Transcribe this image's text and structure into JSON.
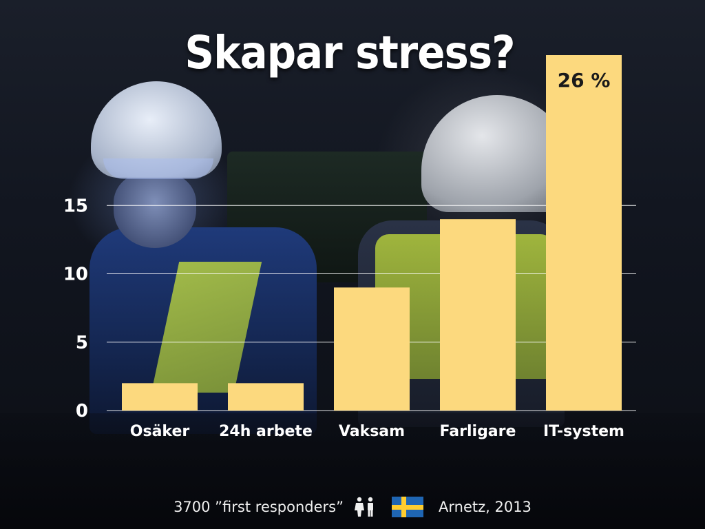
{
  "title": "Skapar stress?",
  "chart_data": {
    "type": "bar",
    "categories": [
      "Osäker",
      "24h arbete",
      "Vaksam",
      "Farligare",
      "IT-system"
    ],
    "values": [
      2,
      2,
      9,
      14,
      26
    ],
    "data_labels": [
      "",
      "",
      "",
      "",
      "26 %"
    ],
    "yticks": [
      0,
      5,
      10,
      15
    ],
    "ylim": [
      0,
      26
    ],
    "grid": true,
    "bar_color": "#fcd97e",
    "xlabel": "",
    "ylabel": ""
  },
  "footer": {
    "respondents": "3700  ”first responders”",
    "source": "Arnetz, 2013",
    "people_icon": "man-woman-icon",
    "flag_icon": "sweden-flag-icon"
  }
}
